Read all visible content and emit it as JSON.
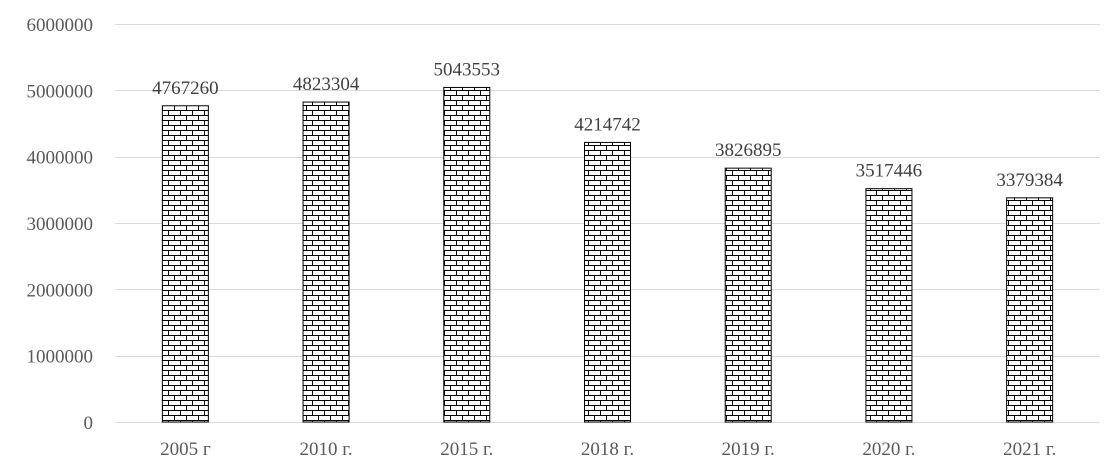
{
  "chart_data": {
    "type": "bar",
    "categories": [
      "2005 г",
      "2010 г.",
      "2015 г.",
      "2018 г.",
      "2019 г.",
      "2020 г.",
      "2021 г."
    ],
    "values": [
      4767260,
      4823304,
      5043553,
      4214742,
      3826895,
      3517446,
      3379384
    ],
    "data_labels": [
      "4767260",
      "4823304",
      "5043553",
      "4214742",
      "3826895",
      "3517446",
      "3379384"
    ],
    "title": "",
    "xlabel": "",
    "ylabel": "",
    "ylim": [
      0,
      6000000
    ],
    "yticks": [
      0,
      1000000,
      2000000,
      3000000,
      4000000,
      5000000,
      6000000
    ],
    "ytick_labels": [
      "0",
      "1000000",
      "2000000",
      "3000000",
      "4000000",
      "5000000",
      "6000000"
    ],
    "grid": true,
    "legend": "none",
    "bar_fill": "brick-pattern",
    "colors": {
      "bar_pattern": "#000000",
      "bar_background": "#ffffff",
      "grid": "#d9d9d9",
      "text": "#595959"
    }
  }
}
